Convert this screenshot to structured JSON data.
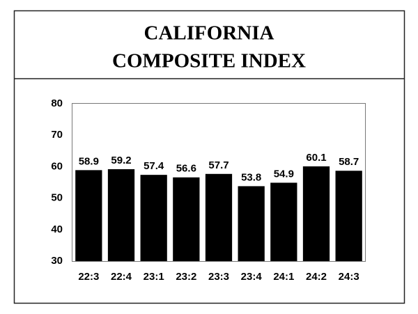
{
  "chart_data": {
    "type": "bar",
    "title": [
      "CALIFORNIA",
      "COMPOSITE INDEX"
    ],
    "categories": [
      "22:3",
      "22:4",
      "23:1",
      "23:2",
      "23:3",
      "23:4",
      "24:1",
      "24:2",
      "24:3"
    ],
    "values": [
      58.9,
      59.2,
      57.4,
      56.6,
      57.7,
      53.8,
      54.9,
      60.1,
      58.7
    ],
    "color": "#000000",
    "ylim": [
      30,
      80
    ],
    "yticks": [
      30,
      40,
      50,
      60,
      70,
      80
    ],
    "grid": false
  }
}
